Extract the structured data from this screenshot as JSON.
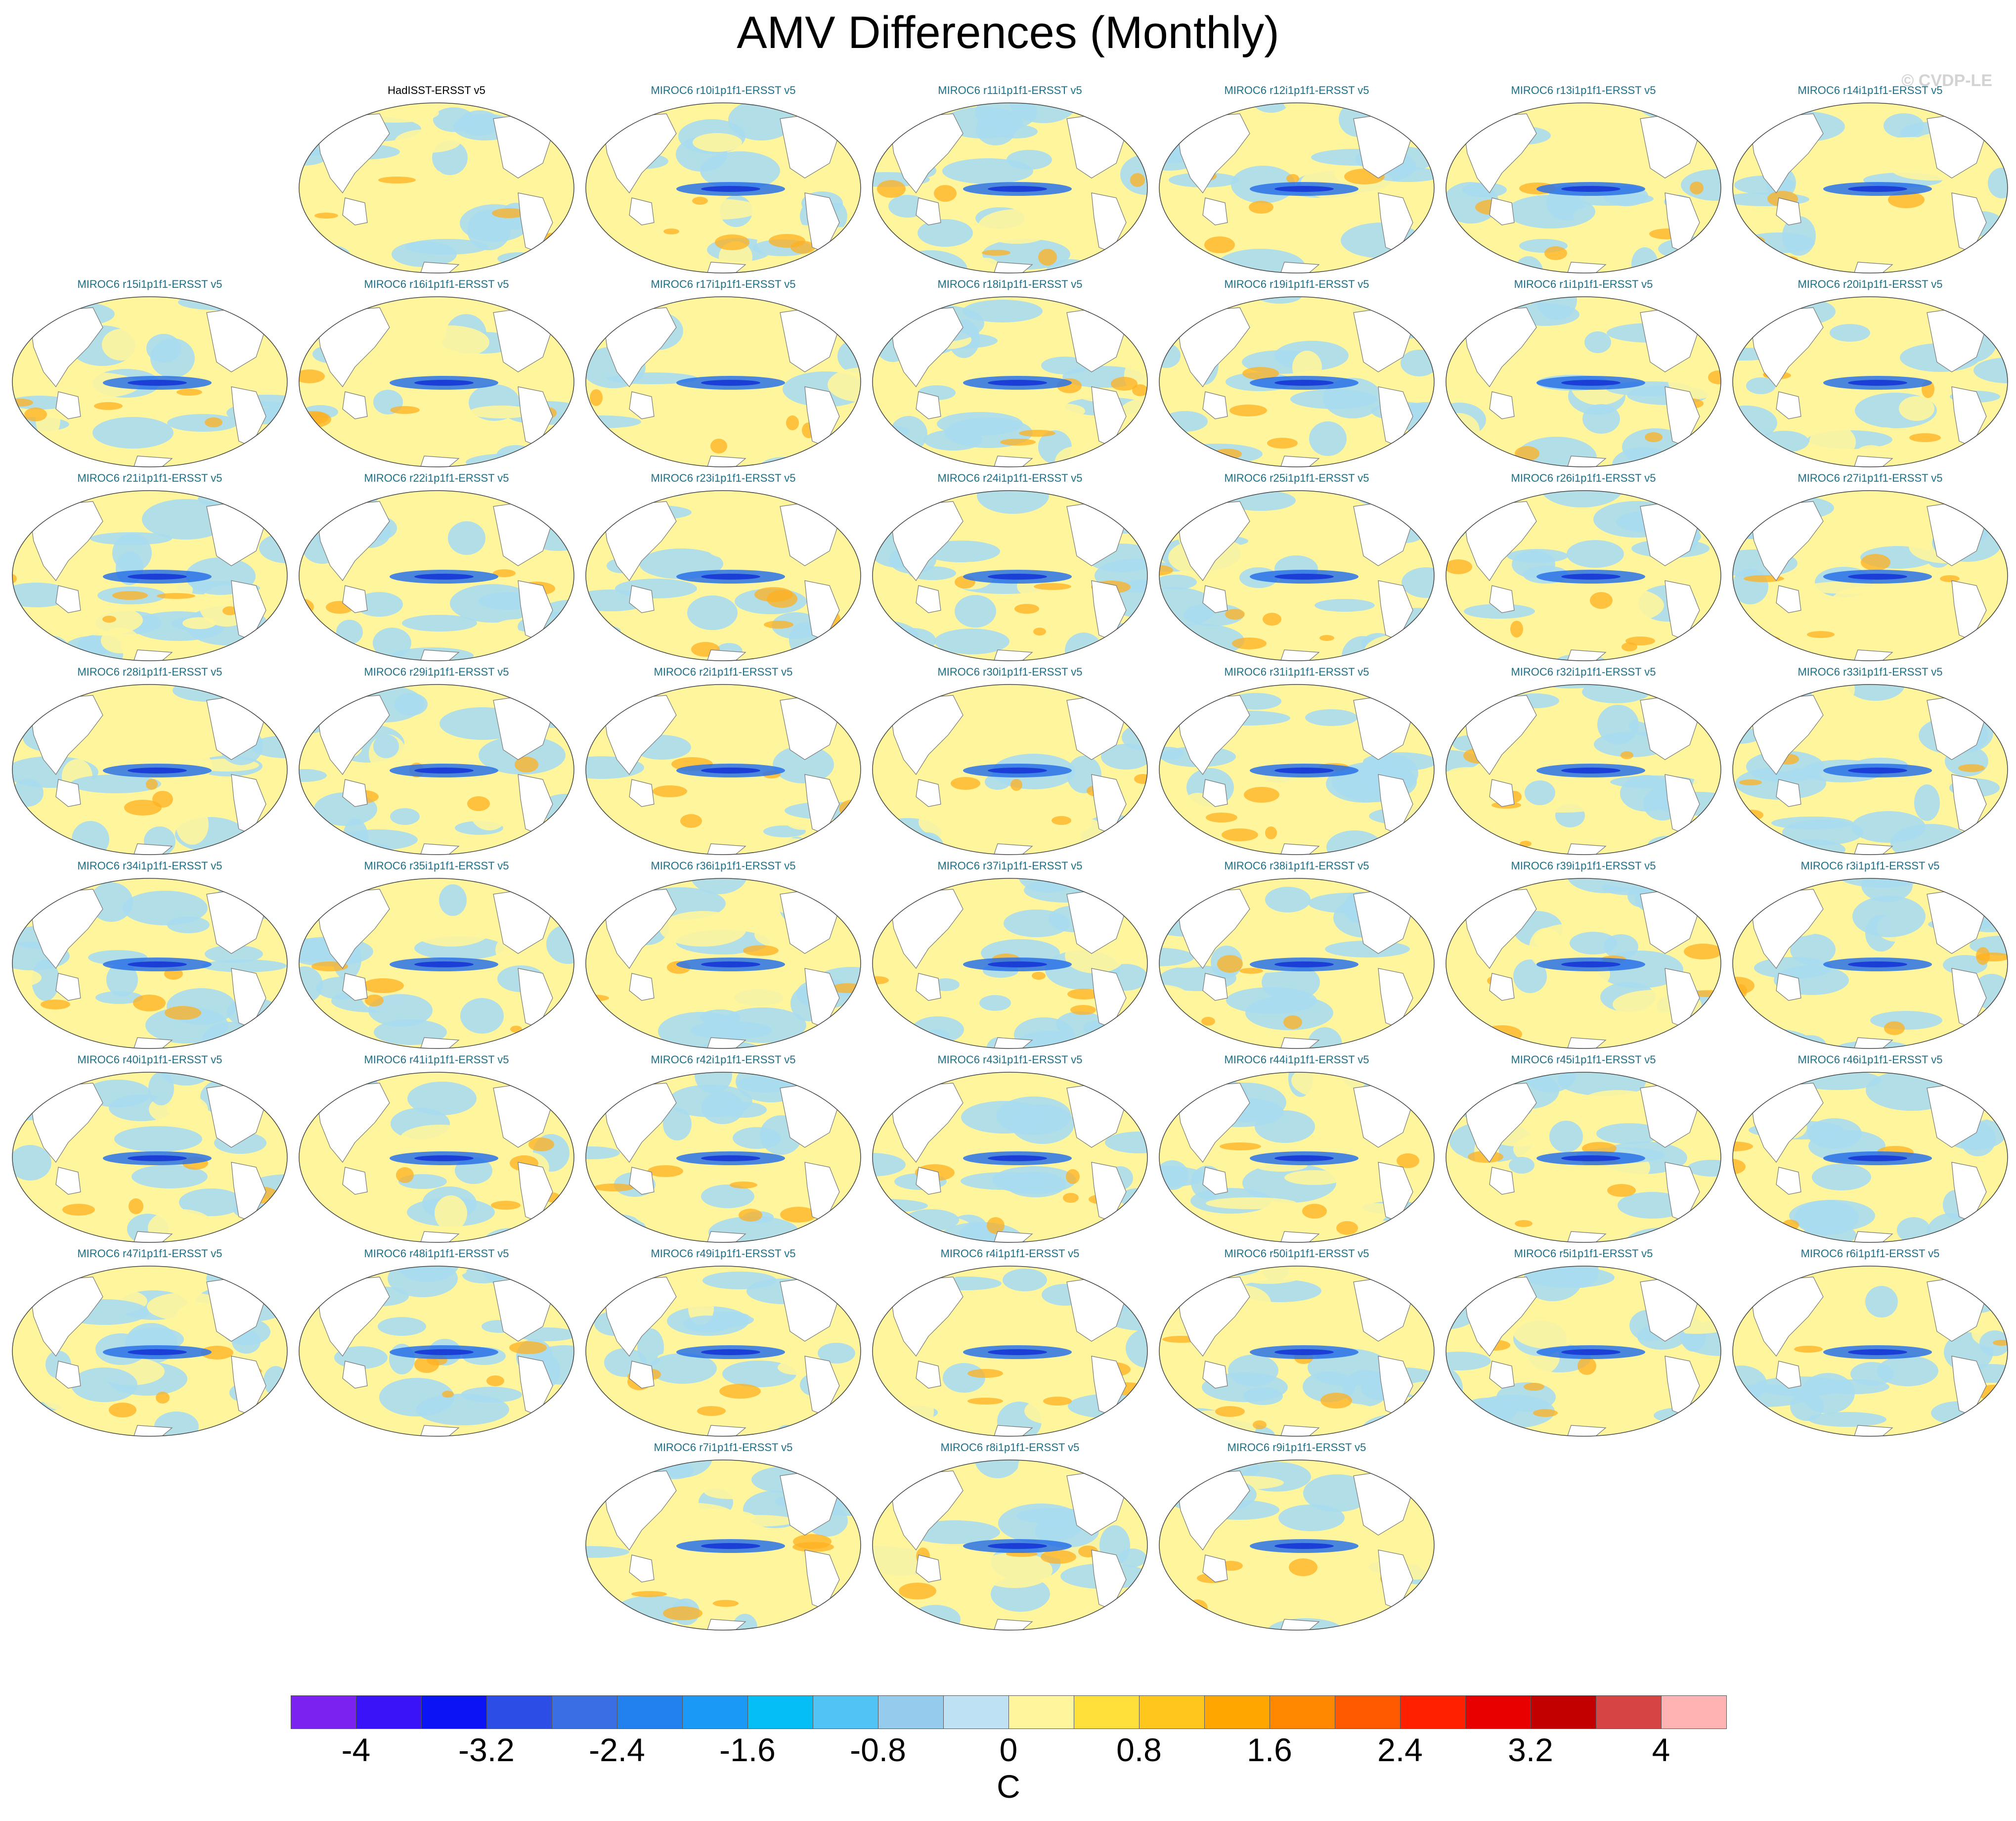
{
  "title": "AMV Differences (Monthly)",
  "watermark": "© CVDP-LE",
  "units": "C",
  "colorbar": {
    "colors": [
      "#7b22f0",
      "#3a13f8",
      "#0a14f5",
      "#2c4ee6",
      "#3a6fe3",
      "#2280ef",
      "#1b99f7",
      "#06bef6",
      "#52c3f5",
      "#95ccee",
      "#bee2f3",
      "#fff59c",
      "#ffe03a",
      "#ffc71c",
      "#ffa600",
      "#ff8800",
      "#ff5a00",
      "#ff2000",
      "#e80000",
      "#c20000",
      "#d64444",
      "#ffb3b3"
    ],
    "labels": [
      "-4",
      "-3.2",
      "-2.4",
      "-1.6",
      "-0.8",
      "0",
      "0.8",
      "1.6",
      "2.4",
      "3.2",
      "4"
    ]
  },
  "colors": {
    "ocean_blue": "#a8dcf0",
    "ocean_yellow": "#fff59c",
    "deep_blue": "#2a72e8",
    "orange": "#ffb020",
    "land": "#ffffff",
    "coast": "#777777"
  },
  "panels": [
    {
      "title": "HadISST-ERSST v5",
      "obs": true
    },
    {
      "title": "MIROC6 r10i1p1f1-ERSST v5"
    },
    {
      "title": "MIROC6 r11i1p1f1-ERSST v5"
    },
    {
      "title": "MIROC6 r12i1p1f1-ERSST v5"
    },
    {
      "title": "MIROC6 r13i1p1f1-ERSST v5"
    },
    {
      "title": "MIROC6 r14i1p1f1-ERSST v5"
    },
    {
      "title": "MIROC6 r15i1p1f1-ERSST v5"
    },
    {
      "title": "MIROC6 r16i1p1f1-ERSST v5"
    },
    {
      "title": "MIROC6 r17i1p1f1-ERSST v5"
    },
    {
      "title": "MIROC6 r18i1p1f1-ERSST v5"
    },
    {
      "title": "MIROC6 r19i1p1f1-ERSST v5"
    },
    {
      "title": "MIROC6 r1i1p1f1-ERSST v5"
    },
    {
      "title": "MIROC6 r20i1p1f1-ERSST v5"
    },
    {
      "title": "MIROC6 r21i1p1f1-ERSST v5"
    },
    {
      "title": "MIROC6 r22i1p1f1-ERSST v5"
    },
    {
      "title": "MIROC6 r23i1p1f1-ERSST v5"
    },
    {
      "title": "MIROC6 r24i1p1f1-ERSST v5"
    },
    {
      "title": "MIROC6 r25i1p1f1-ERSST v5"
    },
    {
      "title": "MIROC6 r26i1p1f1-ERSST v5"
    },
    {
      "title": "MIROC6 r27i1p1f1-ERSST v5"
    },
    {
      "title": "MIROC6 r28i1p1f1-ERSST v5"
    },
    {
      "title": "MIROC6 r29i1p1f1-ERSST v5"
    },
    {
      "title": "MIROC6 r2i1p1f1-ERSST v5"
    },
    {
      "title": "MIROC6 r30i1p1f1-ERSST v5"
    },
    {
      "title": "MIROC6 r31i1p1f1-ERSST v5"
    },
    {
      "title": "MIROC6 r32i1p1f1-ERSST v5"
    },
    {
      "title": "MIROC6 r33i1p1f1-ERSST v5"
    },
    {
      "title": "MIROC6 r34i1p1f1-ERSST v5"
    },
    {
      "title": "MIROC6 r35i1p1f1-ERSST v5"
    },
    {
      "title": "MIROC6 r36i1p1f1-ERSST v5"
    },
    {
      "title": "MIROC6 r37i1p1f1-ERSST v5"
    },
    {
      "title": "MIROC6 r38i1p1f1-ERSST v5"
    },
    {
      "title": "MIROC6 r39i1p1f1-ERSST v5"
    },
    {
      "title": "MIROC6 r3i1p1f1-ERSST v5"
    },
    {
      "title": "MIROC6 r40i1p1f1-ERSST v5"
    },
    {
      "title": "MIROC6 r41i1p1f1-ERSST v5"
    },
    {
      "title": "MIROC6 r42i1p1f1-ERSST v5"
    },
    {
      "title": "MIROC6 r43i1p1f1-ERSST v5"
    },
    {
      "title": "MIROC6 r44i1p1f1-ERSST v5"
    },
    {
      "title": "MIROC6 r45i1p1f1-ERSST v5"
    },
    {
      "title": "MIROC6 r46i1p1f1-ERSST v5"
    },
    {
      "title": "MIROC6 r47i1p1f1-ERSST v5"
    },
    {
      "title": "MIROC6 r48i1p1f1-ERSST v5"
    },
    {
      "title": "MIROC6 r49i1p1f1-ERSST v5"
    },
    {
      "title": "MIROC6 r4i1p1f1-ERSST v5"
    },
    {
      "title": "MIROC6 r50i1p1f1-ERSST v5"
    },
    {
      "title": "MIROC6 r5i1p1f1-ERSST v5"
    },
    {
      "title": "MIROC6 r6i1p1f1-ERSST v5"
    },
    {
      "title": "MIROC6 r7i1p1f1-ERSST v5"
    },
    {
      "title": "MIROC6 r8i1p1f1-ERSST v5"
    },
    {
      "title": "MIROC6 r9i1p1f1-ERSST v5"
    }
  ]
}
